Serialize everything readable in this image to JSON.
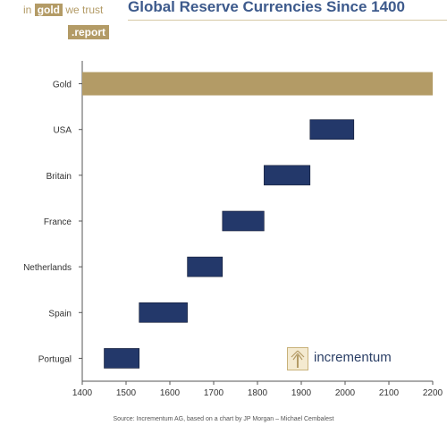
{
  "header": {
    "logo_line1_pre": "in",
    "logo_line1_gold": "gold",
    "logo_line1_post": "we trust",
    "logo_line2": ".report",
    "title": "Global Reserve Currencies Since 1400"
  },
  "chart_data": {
    "type": "bar",
    "subtype": "timeline-range",
    "title": "Global Reserve Currencies Since 1400",
    "categories": [
      "Gold",
      "USA",
      "Britain",
      "France",
      "Netherlands",
      "Spain",
      "Portugal"
    ],
    "ranges": [
      {
        "category": "Gold",
        "start": 1400,
        "end": 2200
      },
      {
        "category": "USA",
        "start": 1920,
        "end": 2020
      },
      {
        "category": "Britain",
        "start": 1815,
        "end": 1920
      },
      {
        "category": "France",
        "start": 1720,
        "end": 1815
      },
      {
        "category": "Netherlands",
        "start": 1640,
        "end": 1720
      },
      {
        "category": "Spain",
        "start": 1530,
        "end": 1640
      },
      {
        "category": "Portugal",
        "start": 1450,
        "end": 1530
      }
    ],
    "xlim": [
      1400,
      2200
    ],
    "x_ticks": [
      "1400",
      "1500",
      "1600",
      "1700",
      "1800",
      "1900",
      "2000",
      "2100",
      "2200"
    ],
    "colors": {
      "gold": "#b39b66",
      "nation": "#23386a",
      "axis": "#555555"
    }
  },
  "brand": {
    "name": "incrementum"
  },
  "footer": {
    "source": "Source: Incrementum AG, based on a chart by JP Morgan – Michael Cembalest"
  }
}
